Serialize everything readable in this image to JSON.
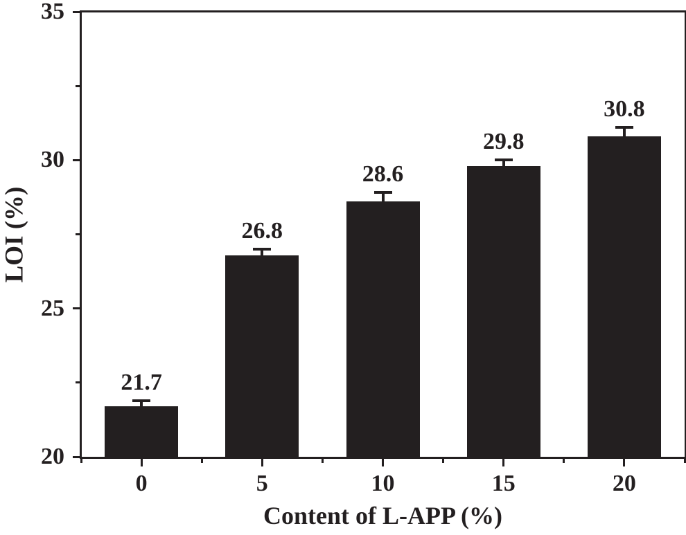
{
  "figure": {
    "background": "#ffffff",
    "ink_color": "#231f20"
  },
  "chart_data": {
    "type": "bar",
    "xlabel": "Content of L-APP (%)",
    "ylabel": "LOI (%)",
    "categories": [
      "0",
      "5",
      "10",
      "15",
      "20"
    ],
    "values": [
      21.7,
      26.8,
      28.6,
      29.8,
      30.8
    ],
    "value_labels": [
      "21.7",
      "26.8",
      "28.6",
      "29.8",
      "30.8"
    ],
    "error_bars": [
      0.2,
      0.2,
      0.3,
      0.2,
      0.3
    ],
    "ylim": [
      20,
      35
    ],
    "y_major_ticks": [
      20,
      25,
      30,
      35
    ],
    "y_minor_ticks": [
      22.5,
      27.5,
      32.5
    ],
    "x_minor_ticks": "category-midpoints-and-edges",
    "bar_color": "#231f20",
    "grid": false,
    "legend": "none"
  }
}
